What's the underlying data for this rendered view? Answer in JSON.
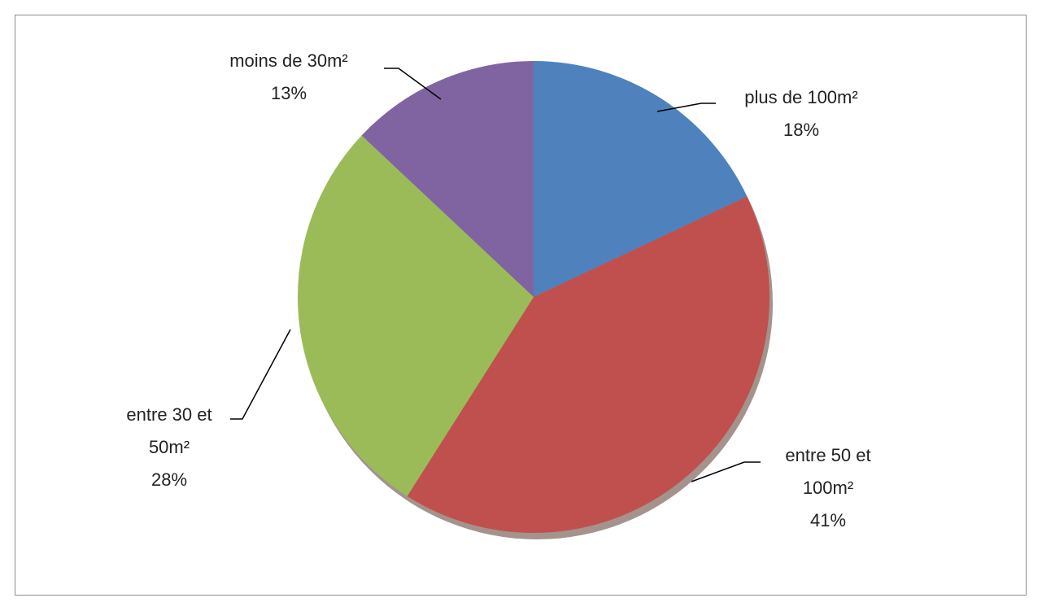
{
  "chart_data": {
    "type": "pie",
    "categories": [
      "plus de 100m²",
      "entre 50 et 100m²",
      "entre 30 et 50m²",
      "moins de 30m²"
    ],
    "values": [
      18,
      41,
      28,
      13
    ],
    "value_labels": [
      "18%",
      "41%",
      "28%",
      "13%"
    ],
    "colors": [
      "#4f81bd",
      "#c0504d",
      "#9bbb59",
      "#8064a2"
    ]
  }
}
